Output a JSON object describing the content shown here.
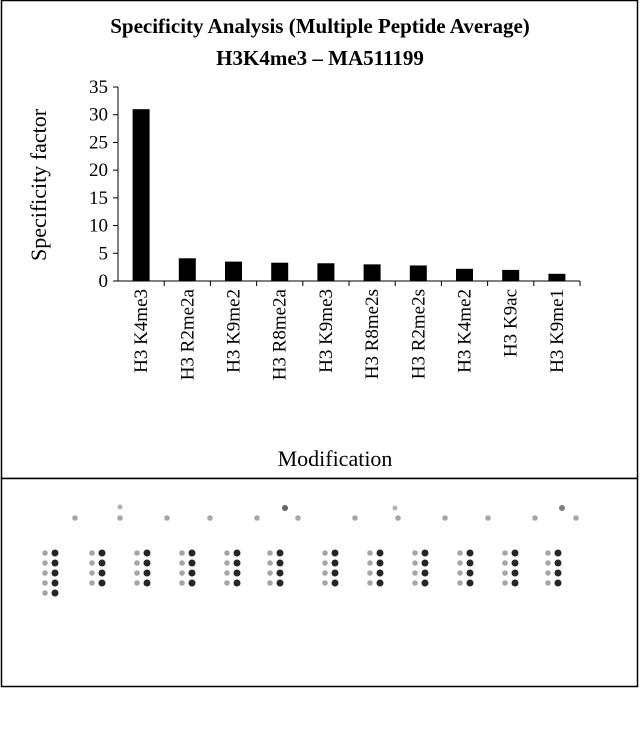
{
  "chart_data": {
    "type": "bar",
    "title": "Specificity Analysis  (Multiple Peptide Average)",
    "subtitle": "H3K4me3 – MA511199",
    "y_label": "Specificity factor",
    "x_label": "Modification",
    "categories": [
      "H3 K4me3",
      "H3 R2me2a",
      "H3 K9me2",
      "H3 R8me2a",
      "H3 K9me3",
      "H3 R8me2s",
      "H3 R2me2s",
      "H3 K4me2",
      "H3 K9ac",
      "H3 K9me1"
    ],
    "values": [
      31,
      4.1,
      3.5,
      3.3,
      3.2,
      3.0,
      2.8,
      2.2,
      2.0,
      1.3
    ],
    "color": "#000000",
    "ylim": [
      0,
      35
    ],
    "yticks": [
      0,
      5,
      10,
      15,
      20,
      25,
      30,
      35
    ],
    "grid": false
  }
}
